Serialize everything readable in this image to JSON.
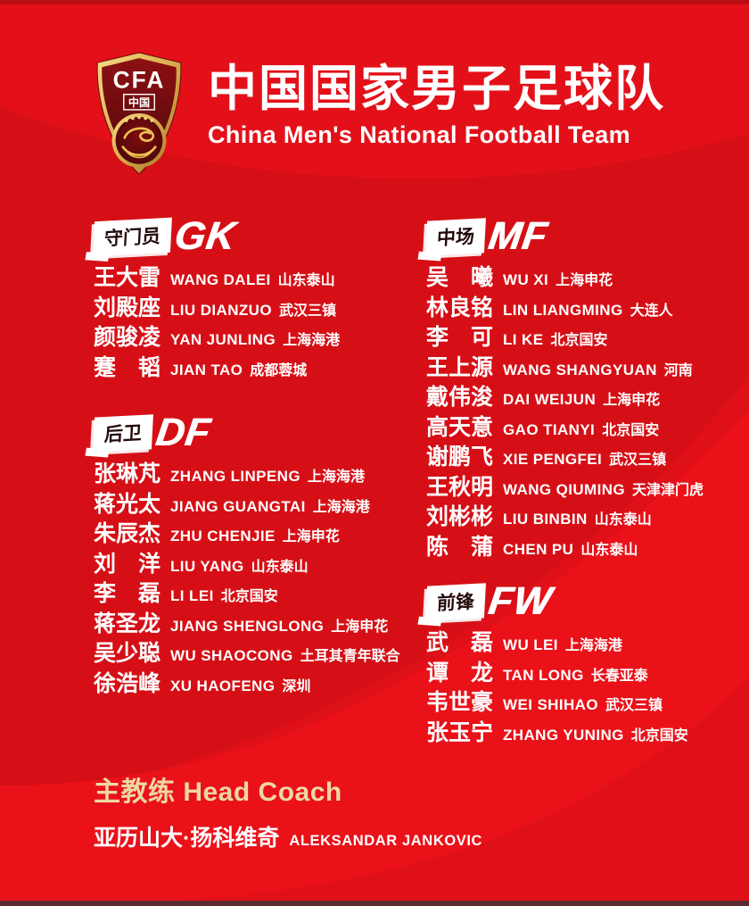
{
  "header": {
    "title_cn": "中国国家男子足球队",
    "title_en": "China Men's National Football Team",
    "logo": {
      "acronym": "CFA",
      "country": "中国"
    }
  },
  "sections": [
    {
      "id": "gk",
      "label_cn": "守门员",
      "label_en": "GK",
      "players": [
        {
          "name": "王大雷",
          "pinyin": "WANG DALEI",
          "club": "山东泰山"
        },
        {
          "name": "刘殿座",
          "pinyin": "LIU DIANZUO",
          "club": "武汉三镇"
        },
        {
          "name": "颜骏凌",
          "pinyin": "YAN JUNLING",
          "club": "上海海港"
        },
        {
          "name": "蹇　韬",
          "pinyin": "JIAN TAO",
          "club": "成都蓉城"
        }
      ]
    },
    {
      "id": "df",
      "label_cn": "后卫",
      "label_en": "DF",
      "players": [
        {
          "name": "张琳芃",
          "pinyin": "ZHANG LINPENG",
          "club": "上海海港"
        },
        {
          "name": "蒋光太",
          "pinyin": "JIANG GUANGTAI",
          "club": "上海海港"
        },
        {
          "name": "朱辰杰",
          "pinyin": "ZHU CHENJIE",
          "club": "上海申花"
        },
        {
          "name": "刘　洋",
          "pinyin": "LIU YANG",
          "club": "山东泰山"
        },
        {
          "name": "李　磊",
          "pinyin": "LI LEI",
          "club": "北京国安"
        },
        {
          "name": "蒋圣龙",
          "pinyin": "JIANG SHENGLONG",
          "club": "上海申花"
        },
        {
          "name": "吴少聪",
          "pinyin": "WU SHAOCONG",
          "club": "土耳其青年联合"
        },
        {
          "name": "徐浩峰",
          "pinyin": "XU HAOFENG",
          "club": "深圳"
        }
      ]
    },
    {
      "id": "mf",
      "label_cn": "中场",
      "label_en": "MF",
      "players": [
        {
          "name": "吴　曦",
          "pinyin": "WU XI",
          "club": "上海申花"
        },
        {
          "name": "林良铭",
          "pinyin": "LIN LIANGMING",
          "club": "大连人"
        },
        {
          "name": "李　可",
          "pinyin": "LI KE",
          "club": "北京国安"
        },
        {
          "name": "王上源",
          "pinyin": "WANG SHANGYUAN",
          "club": "河南"
        },
        {
          "name": "戴伟浚",
          "pinyin": "DAI WEIJUN",
          "club": "上海申花"
        },
        {
          "name": "高天意",
          "pinyin": "GAO TIANYI",
          "club": "北京国安"
        },
        {
          "name": "谢鹏飞",
          "pinyin": "XIE PENGFEI",
          "club": "武汉三镇"
        },
        {
          "name": "王秋明",
          "pinyin": "WANG QIUMING",
          "club": "天津津门虎"
        },
        {
          "name": "刘彬彬",
          "pinyin": "LIU BINBIN",
          "club": "山东泰山"
        },
        {
          "name": "陈　蒲",
          "pinyin": "CHEN PU",
          "club": "山东泰山"
        }
      ]
    },
    {
      "id": "fw",
      "label_cn": "前锋",
      "label_en": "FW",
      "players": [
        {
          "name": "武　磊",
          "pinyin": "WU LEI",
          "club": "上海海港"
        },
        {
          "name": "谭　龙",
          "pinyin": "TAN LONG",
          "club": "长春亚泰"
        },
        {
          "name": "韦世豪",
          "pinyin": "WEI SHIHAO",
          "club": "武汉三镇"
        },
        {
          "name": "张玉宁",
          "pinyin": "ZHANG YUNING",
          "club": "北京国安"
        }
      ]
    }
  ],
  "coach": {
    "label": "主教练 Head Coach",
    "name_cn": "亚历山大·扬科维奇",
    "name_en": "ALEKSANDAR JANKOVIC"
  },
  "colors": {
    "background": "#e01019",
    "strip_top": "#b80d13",
    "strip_bottom": "#5c2b31",
    "badge_text": "#24090b",
    "coach_gold": "#eed7a1"
  }
}
